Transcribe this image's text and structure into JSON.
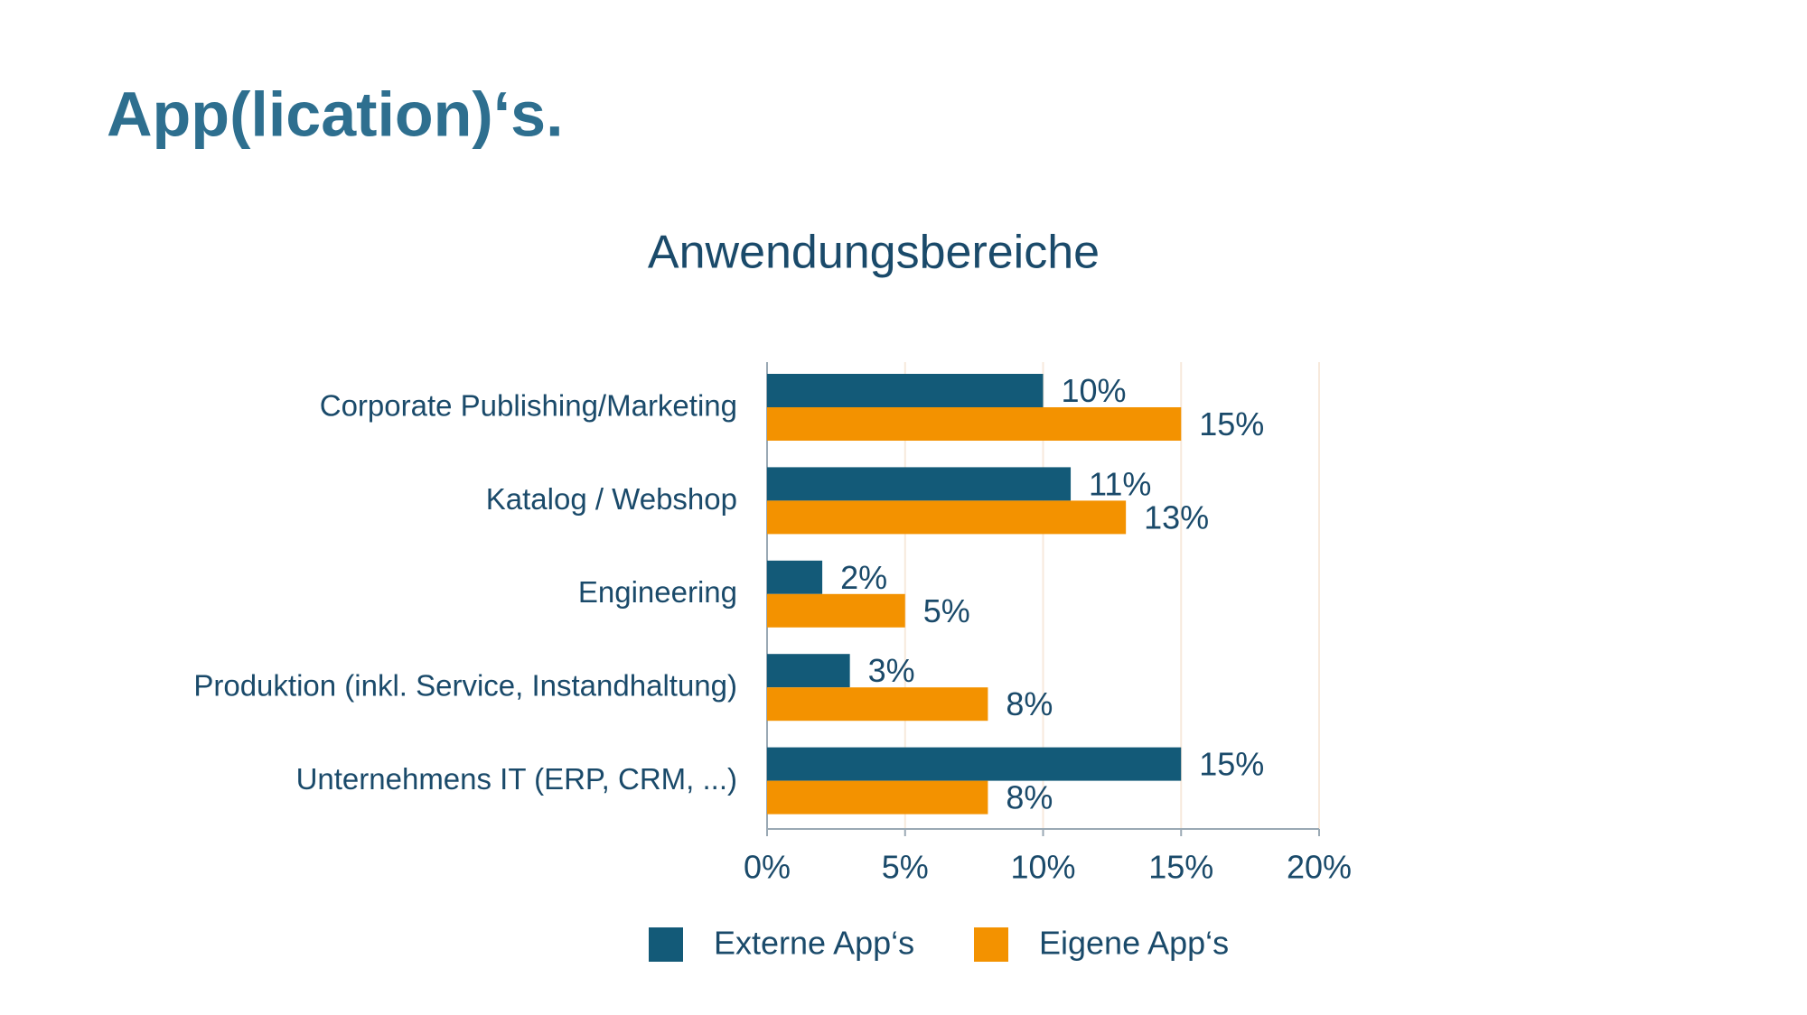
{
  "header": {
    "title": "App(lication)‘s."
  },
  "chart_data": {
    "type": "hbar",
    "title": "Anwendungsbereiche",
    "categories": [
      "Corporate Publishing/Marketing",
      "Katalog / Webshop",
      "Engineering",
      "Produktion (inkl. Service, Instandhaltung)",
      "Unternehmens IT (ERP, CRM, ...)"
    ],
    "series": [
      {
        "name": "Externe App‘s",
        "color": "#135a78",
        "values": [
          10,
          11,
          2,
          3,
          15
        ],
        "value_labels": [
          "10%",
          "11%",
          "2%",
          "3%",
          "15%"
        ]
      },
      {
        "name": "Eigene App‘s",
        "color": "#f39200",
        "values": [
          15,
          13,
          5,
          8,
          8
        ],
        "value_labels": [
          "15%",
          "13%",
          "5%",
          "8%",
          "8%"
        ]
      }
    ],
    "xlim": [
      0,
      20
    ],
    "xticks": [
      {
        "value": 0,
        "label": "0%"
      },
      {
        "value": 5,
        "label": "5%"
      },
      {
        "value": 10,
        "label": "10%"
      },
      {
        "value": 15,
        "label": "15%"
      },
      {
        "value": 20,
        "label": "20%"
      }
    ],
    "grid": true,
    "legend": "bottom"
  }
}
